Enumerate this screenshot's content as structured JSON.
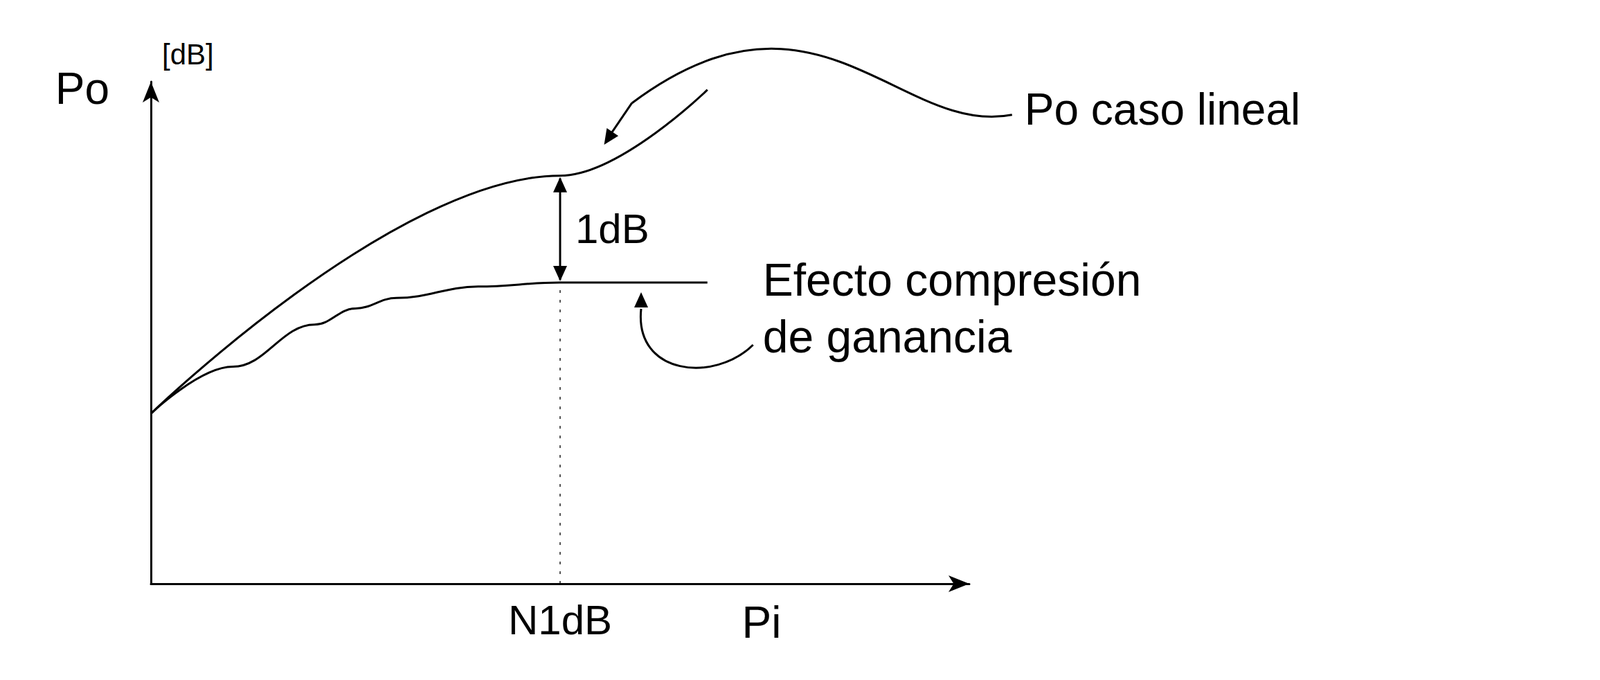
{
  "chart_data": {
    "type": "line",
    "xlabel": "Pi",
    "ylabel": "Po",
    "ylabel_unit": "[dB]",
    "xlim": [
      0,
      10
    ],
    "ylim": [
      0,
      6.2
    ],
    "xticks": [
      {
        "value": 5,
        "label": "N1dB"
      }
    ],
    "yticks": [],
    "tick_labels": "x",
    "grid": false,
    "series": [
      {
        "name": "Po caso lineal",
        "color": "#000000",
        "line_style": "solid",
        "x": [
          0,
          5,
          6.8
        ],
        "values": [
          2.1,
          5.04,
          6.1
        ]
      },
      {
        "name": "Efecto compresión de ganancia",
        "color": "#000000",
        "line_style": "solid",
        "x": [
          0,
          1,
          2,
          2.5,
          3,
          4,
          5,
          6.8
        ],
        "values": [
          2.1,
          2.68,
          3.2,
          3.4,
          3.53,
          3.67,
          3.72,
          3.72
        ]
      }
    ],
    "annotations": [
      {
        "text": "1dB",
        "x": 5
      }
    ]
  }
}
